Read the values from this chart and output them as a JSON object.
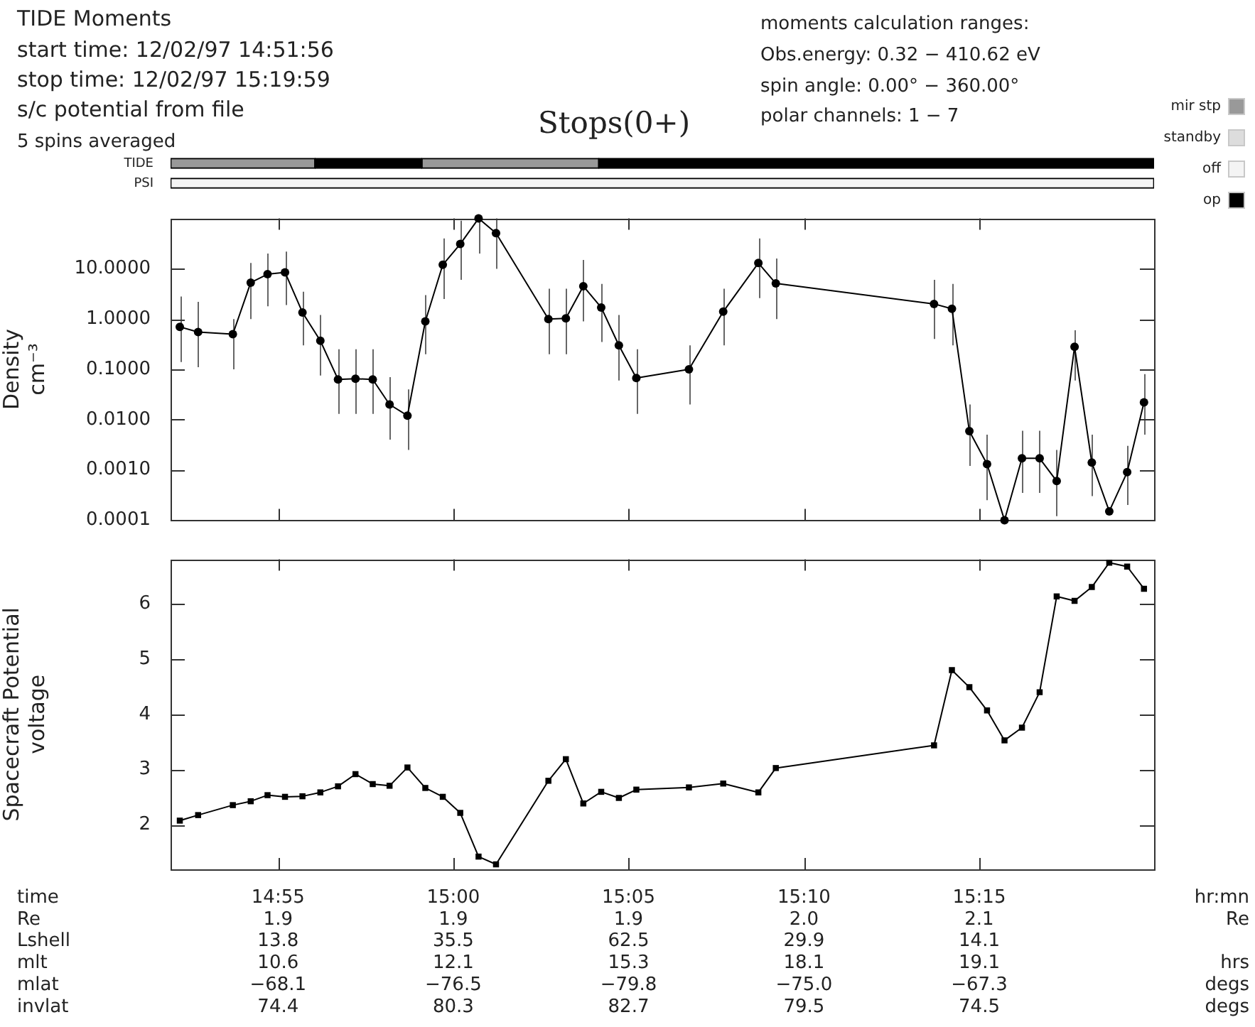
{
  "chart_data": [
    {
      "type": "bar",
      "title": "Stops(0+)",
      "orientation": "horizontal",
      "categories": [
        "TIDE",
        "PSI"
      ],
      "xlim": [
        14.8656,
        15.3331
      ],
      "tick_labels": "y",
      "legend": "right",
      "annotations": [
        "TIDE Moments",
        "start time: 12/02/97 14:51:56",
        "stop time: 12/02/97 15:19:59",
        "s/c potential from file",
        "5 spins averaged",
        "moments calculation ranges:",
        "Obs.energy: 0.32 − 410.62 eV",
        "spin angle: 0.00° − 360.00°",
        "polar channels: 1 − 7"
      ],
      "series": [
        {
          "name": "mir stp",
          "color": "#999999",
          "values": [
            0.0687,
            null
          ],
          "base": [
            14.8656,
            null
          ]
        },
        {
          "name": "standby",
          "color": "#dddddd",
          "values": [
            null,
            null
          ],
          "base": [
            null,
            null
          ]
        },
        {
          "name": "off",
          "color": "#f4f4f4",
          "values": [
            null,
            0.4675
          ],
          "base": [
            null,
            14.8656
          ]
        },
        {
          "name": "op",
          "color": "#000000",
          "values": [
            0.0507,
            null
          ],
          "base": [
            14.9343,
            null
          ]
        },
        {
          "color": "#999999",
          "values": [
            0.0842,
            null
          ],
          "base": [
            14.985,
            null
          ]
        },
        {
          "color": "#000000",
          "values": [
            0.2639,
            null
          ],
          "base": [
            15.0692,
            null
          ]
        }
      ]
    },
    {
      "type": "line",
      "ylabel": "Density\ncm⁻³",
      "log": true,
      "marker": "circle",
      "tick_labels": "y",
      "grid": false,
      "xlim": [
        14.8656,
        15.3331
      ],
      "xticks": [
        {
          "value": 14.9167,
          "label": null
        },
        {
          "value": 15,
          "label": null
        },
        {
          "value": 15.0833,
          "label": null
        },
        {
          "value": 15.1667,
          "label": null
        },
        {
          "value": 15.25,
          "label": null
        }
      ],
      "ylim": [
        0.0001,
        100
      ],
      "yticks": [
        {
          "value": 0.0001,
          "label": "0.0001"
        },
        {
          "value": 0.001,
          "label": "0.0010"
        },
        {
          "value": 0.01,
          "label": "0.0100"
        },
        {
          "value": 0.1,
          "label": "0.1000"
        },
        {
          "value": 1,
          "label": "1.0000"
        },
        {
          "value": 10,
          "label": "10.0000"
        }
      ],
      "x": [
        14.87,
        14.8787,
        14.8952,
        14.9037,
        14.9117,
        14.92,
        14.9283,
        14.9368,
        14.9452,
        14.9535,
        14.9617,
        14.9697,
        14.9782,
        14.9867,
        14.995,
        15.0033,
        15.012,
        15.0203,
        15.0452,
        15.0535,
        15.0618,
        15.0703,
        15.0787,
        15.087,
        15.112,
        15.1283,
        15.145,
        15.1533,
        15.2285,
        15.237,
        15.2453,
        15.2537,
        15.262,
        15.2703,
        15.2787,
        15.2868,
        15.2953,
        15.3035,
        15.3118,
        15.3203,
        15.3283
      ],
      "series": [
        {
          "color": "#000000",
          "values": [
            0.7,
            0.55,
            0.5,
            5.3,
            7.8,
            8.5,
            1.35,
            0.37,
            0.063,
            0.065,
            0.063,
            0.02,
            0.012,
            0.9,
            12,
            31,
            100,
            51,
            1.0,
            1.03,
            4.5,
            1.7,
            0.3,
            0.067,
            0.1,
            1.4,
            13,
            5.1,
            2.0,
            1.6,
            0.0059,
            0.0013,
            0.0001,
            0.0017,
            0.0017,
            0.0006,
            0.28,
            0.0014,
            0.00015,
            0.0009,
            0.022
          ],
          "errors": [
            [
              0.14,
              2.8
            ],
            [
              0.11,
              2.2
            ],
            [
              0.1,
              1.0
            ],
            [
              1.0,
              13
            ],
            [
              1.8,
              20
            ],
            [
              1.9,
              22
            ],
            [
              0.3,
              3.5
            ],
            [
              0.075,
              1.2
            ],
            [
              0.013,
              0.25
            ],
            [
              0.013,
              0.25
            ],
            [
              0.013,
              0.25
            ],
            [
              0.004,
              0.07
            ],
            [
              0.0025,
              0.04
            ],
            [
              0.2,
              3
            ],
            [
              2.5,
              40
            ],
            [
              6,
              90
            ],
            [
              20,
              100
            ],
            [
              10,
              100
            ],
            [
              0.2,
              4
            ],
            [
              0.2,
              4
            ],
            [
              0.9,
              15
            ],
            [
              0.35,
              5
            ],
            [
              0.06,
              1.2
            ],
            [
              0.013,
              0.25
            ],
            [
              0.02,
              0.3
            ],
            [
              0.3,
              4
            ],
            [
              2.6,
              40
            ],
            [
              1,
              16
            ],
            [
              0.4,
              6
            ],
            [
              0.3,
              5
            ],
            [
              0.0012,
              0.02
            ],
            [
              0.00025,
              0.005
            ],
            null,
            [
              0.00035,
              0.006
            ],
            [
              0.00035,
              0.006
            ],
            [
              0.00012,
              0.0025
            ],
            [
              0.06,
              0.6
            ],
            [
              0.0003,
              0.005
            ],
            null,
            [
              0.0002,
              0.003
            ],
            [
              0.005,
              0.08
            ]
          ]
        }
      ]
    },
    {
      "type": "line",
      "ylabel": "Spacecraft Potential\nvoltage",
      "marker": "square",
      "grid": false,
      "xlim": [
        14.8656,
        15.3331
      ],
      "xticks": [
        {
          "value": 14.9167,
          "label": "14:55"
        },
        {
          "value": 15,
          "label": "15:00"
        },
        {
          "value": 15.0833,
          "label": "15:05"
        },
        {
          "value": 15.1667,
          "label": "15:10"
        },
        {
          "value": 15.25,
          "label": "15:15"
        }
      ],
      "ylim": [
        1.2,
        6.8
      ],
      "yticks": [
        2,
        3,
        4,
        5,
        6
      ],
      "annotations": [
        "time\nRe\nLshell\nmlt\nmlat\ninvlat",
        "hr:mn\nRe\n\nhrs\ndegs\ndegs",
        "1.9\n13.8\n10.6\n−68.1\n74.4",
        "1.9\n35.5\n12.1\n−76.5\n80.3",
        "1.9\n62.5\n15.3\n−79.8\n82.7",
        "2.0\n29.9\n18.1\n−75.0\n79.5",
        "2.1\n14.1\n19.1\n−67.3\n74.5"
      ],
      "x": [
        14.87,
        14.8787,
        14.8952,
        14.9037,
        14.9117,
        14.92,
        14.9283,
        14.9368,
        14.9452,
        14.9535,
        14.9617,
        14.9697,
        14.9782,
        14.9867,
        14.995,
        15.0033,
        15.012,
        15.0203,
        15.0452,
        15.0535,
        15.0618,
        15.0703,
        15.0787,
        15.087,
        15.112,
        15.1283,
        15.145,
        15.1533,
        15.2285,
        15.237,
        15.2453,
        15.2537,
        15.262,
        15.2703,
        15.2787,
        15.2868,
        15.2953,
        15.3035,
        15.3118,
        15.3203,
        15.3283
      ],
      "series": [
        {
          "color": "#000000",
          "values": [
            2.08,
            2.18,
            2.36,
            2.43,
            2.54,
            2.51,
            2.52,
            2.59,
            2.7,
            2.92,
            2.74,
            2.71,
            3.04,
            2.67,
            2.51,
            2.22,
            1.43,
            1.29,
            2.8,
            3.19,
            2.39,
            2.6,
            2.49,
            2.64,
            2.68,
            2.75,
            2.59,
            3.03,
            3.44,
            4.8,
            4.49,
            4.07,
            3.53,
            3.76,
            4.4,
            6.13,
            6.05,
            6.3,
            6.74,
            6.67,
            6.27
          ]
        }
      ]
    }
  ]
}
